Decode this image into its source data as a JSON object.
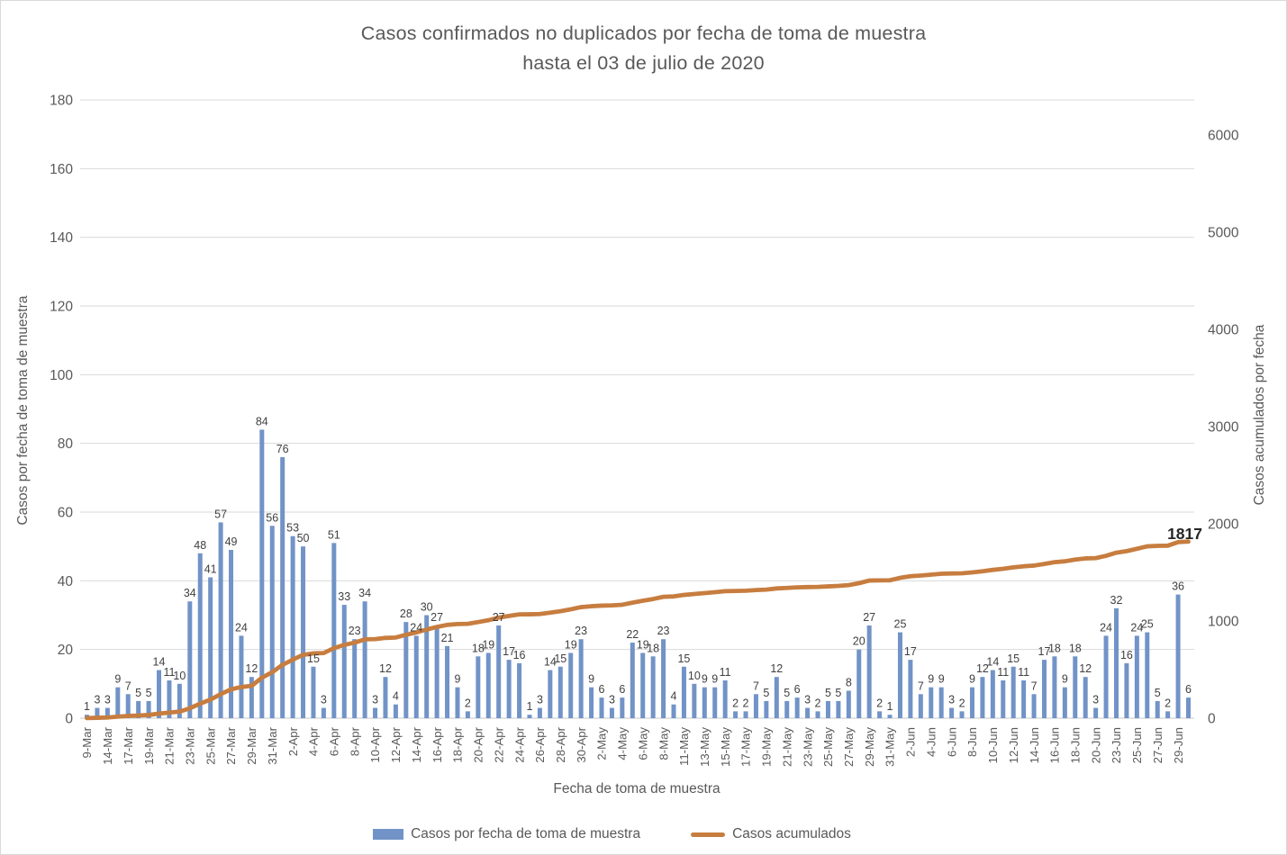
{
  "title": {
    "line1": "Casos confirmados no duplicados por fecha de toma de muestra",
    "line2": "hasta el 03 de julio de 2020"
  },
  "axes": {
    "left": {
      "title": "Casos por fecha de toma de muestra",
      "ticks": [
        0,
        20,
        40,
        60,
        80,
        100,
        120,
        140,
        160,
        180
      ],
      "max": 180
    },
    "right": {
      "title": "Casos acumulados por fecha",
      "ticks": [
        0,
        1000,
        2000,
        3000,
        4000,
        5000,
        6000
      ],
      "max": 6000
    },
    "x": {
      "title": "Fecha de toma de muestra"
    }
  },
  "legend": [
    {
      "label": "Casos por fecha de toma de muestra",
      "type": "bar",
      "color": "#7193C7"
    },
    {
      "label": "Casos acumulados",
      "type": "line",
      "color": "#C77D3F"
    }
  ],
  "annotation": {
    "final_total": "1817"
  },
  "colors": {
    "bar": "#7193C7",
    "line": "#C77D3F",
    "grid": "#D9D9D9",
    "axis_line": "#C9C9C9",
    "tick_text": "#595959",
    "value_label": "#404040",
    "total_label": "#262626"
  },
  "chart_data": {
    "type": "bar+line",
    "title": "Casos confirmados no duplicados por fecha de toma de muestra hasta el 03 de julio de 2020",
    "xlabel": "Fecha de toma de muestra",
    "ylabel_left": "Casos por fecha de toma de muestra",
    "ylabel_right": "Casos acumulados por fecha",
    "ylim_left": [
      0,
      180
    ],
    "ylim_right": [
      0,
      6000
    ],
    "grid": "horizontal",
    "legend_position": "bottom",
    "x_tick_labels": [
      "9-Mar",
      "14-Mar",
      "17-Mar",
      "19-Mar",
      "21-Mar",
      "23-Mar",
      "25-Mar",
      "27-Mar",
      "29-Mar",
      "31-Mar",
      "2-Apr",
      "4-Apr",
      "6-Apr",
      "8-Apr",
      "10-Apr",
      "12-Apr",
      "14-Apr",
      "16-Apr",
      "18-Apr",
      "20-Apr",
      "22-Apr",
      "24-Apr",
      "26-Apr",
      "28-Apr",
      "30-Apr",
      "2-May",
      "4-May",
      "6-May",
      "8-May",
      "11-May",
      "13-May",
      "15-May",
      "17-May",
      "19-May",
      "21-May",
      "23-May",
      "25-May",
      "27-May",
      "29-May",
      "31-May",
      "2-Jun",
      "4-Jun",
      "6-Jun",
      "8-Jun",
      "10-Jun",
      "12-Jun",
      "14-Jun",
      "16-Jun",
      "18-Jun",
      "20-Jun",
      "23-Jun",
      "25-Jun",
      "27-Jun",
      "29-Jun"
    ],
    "x_tick_every": 2,
    "series": [
      {
        "name": "Casos por fecha de toma de muestra",
        "type": "bar",
        "axis": "left",
        "color": "#7193C7",
        "values": [
          1,
          3,
          3,
          9,
          7,
          5,
          5,
          14,
          11,
          10,
          34,
          48,
          41,
          57,
          49,
          24,
          12,
          84,
          56,
          76,
          53,
          50,
          15,
          3,
          51,
          33,
          23,
          34,
          3,
          12,
          4,
          28,
          24,
          30,
          27,
          21,
          9,
          2,
          18,
          19,
          27,
          17,
          16,
          1,
          3,
          14,
          15,
          19,
          23,
          9,
          6,
          3,
          6,
          22,
          19,
          18,
          23,
          4,
          15,
          10,
          9,
          9,
          11,
          2,
          2,
          7,
          5,
          12,
          5,
          6,
          3,
          2,
          5,
          5,
          8,
          20,
          27,
          2,
          1,
          25,
          17,
          7,
          9,
          9,
          3,
          2,
          9,
          12,
          14,
          11,
          15,
          11,
          7,
          17,
          18,
          9,
          18,
          12,
          3,
          24,
          32,
          16,
          24,
          25,
          5,
          2,
          36,
          6
        ]
      },
      {
        "name": "Casos acumulados",
        "type": "line",
        "axis": "right",
        "color": "#C77D3F",
        "values": [
          1,
          4,
          7,
          16,
          23,
          28,
          33,
          47,
          58,
          68,
          102,
          150,
          191,
          248,
          297,
          321,
          333,
          417,
          473,
          549,
          602,
          652,
          667,
          670,
          721,
          754,
          777,
          811,
          814,
          826,
          830,
          858,
          882,
          912,
          939,
          960,
          969,
          971,
          989,
          1008,
          1035,
          1052,
          1068,
          1069,
          1072,
          1086,
          1101,
          1120,
          1143,
          1152,
          1158,
          1161,
          1167,
          1189,
          1208,
          1226,
          1249,
          1253,
          1268,
          1278,
          1287,
          1296,
          1307,
          1309,
          1311,
          1318,
          1323,
          1335,
          1340,
          1346,
          1349,
          1351,
          1356,
          1361,
          1369,
          1389,
          1416,
          1418,
          1419,
          1444,
          1461,
          1468,
          1477,
          1486,
          1489,
          1491,
          1500,
          1512,
          1526,
          1537,
          1552,
          1563,
          1570,
          1587,
          1605,
          1614,
          1632,
          1644,
          1647,
          1671,
          1703,
          1719,
          1743,
          1768,
          1773,
          1775,
          1811,
          1817
        ]
      }
    ],
    "end_label": "1817"
  }
}
